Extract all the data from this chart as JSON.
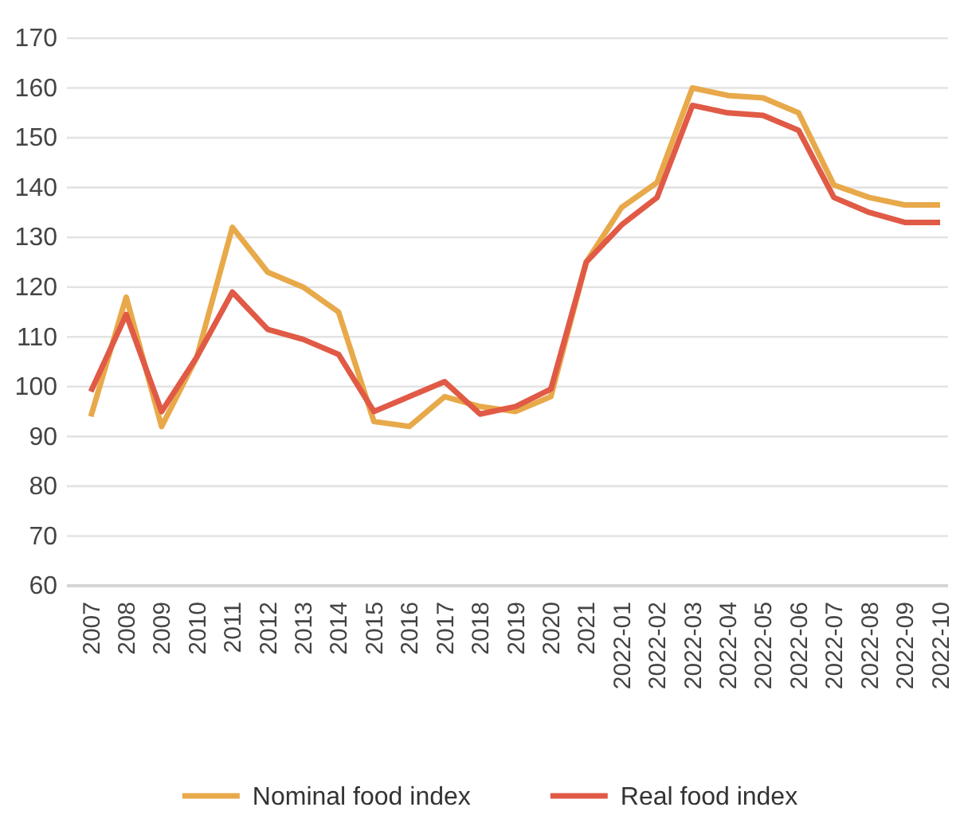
{
  "chart_data": {
    "type": "line",
    "categories": [
      "2007",
      "2008",
      "2009",
      "2010",
      "2011",
      "2012",
      "2013",
      "2014",
      "2015",
      "2016",
      "2017",
      "2018",
      "2019",
      "2020",
      "2021",
      "2022-01",
      "2022-02",
      "2022-03",
      "2022-04",
      "2022-05",
      "2022-06",
      "2022-07",
      "2022-08",
      "2022-09",
      "2022-10"
    ],
    "series": [
      {
        "name": "Nominal food index",
        "color": "#e8a94a",
        "values": [
          94,
          118,
          92,
          106,
          132,
          123,
          120,
          115,
          93,
          92,
          98,
          96,
          95,
          98,
          125,
          136,
          141,
          160,
          158.5,
          158,
          155,
          140.5,
          138,
          136.5,
          136.5
        ]
      },
      {
        "name": "Real food index",
        "color": "#e05a46",
        "values": [
          99,
          114.5,
          95,
          106,
          119,
          111.5,
          109.5,
          106.5,
          95,
          98,
          101,
          94.5,
          96,
          99.5,
          125,
          132.5,
          138,
          156.5,
          155,
          154.5,
          151.5,
          138,
          135,
          133,
          133
        ]
      }
    ],
    "ylim": [
      60,
      170
    ],
    "yticks": [
      60,
      70,
      80,
      90,
      100,
      110,
      120,
      130,
      140,
      150,
      160,
      170
    ],
    "grid": "y",
    "legend": "bottom",
    "line_style": "solid",
    "marker": "none"
  }
}
